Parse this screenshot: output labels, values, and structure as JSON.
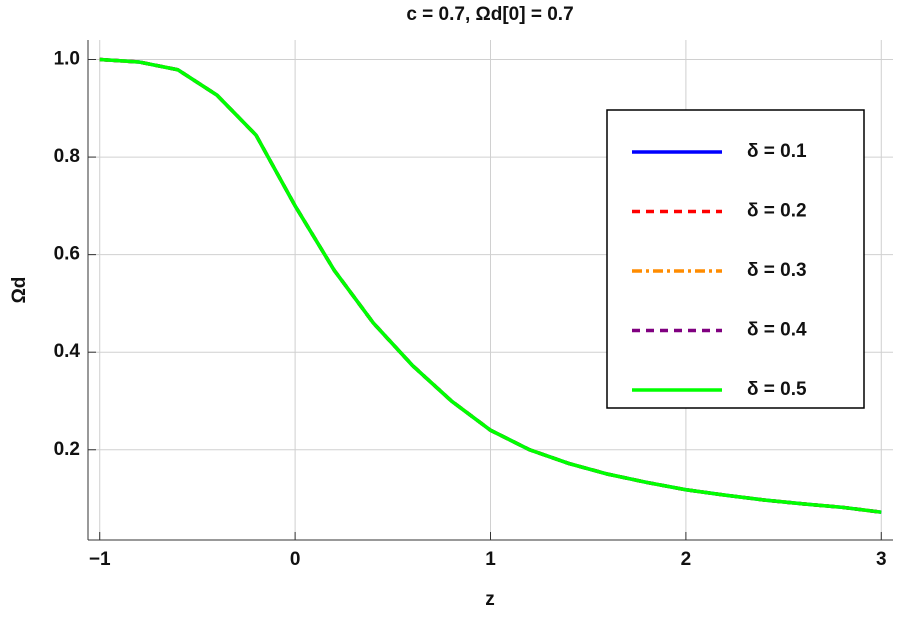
{
  "chart_data": {
    "type": "line",
    "title": "c = 0.7, Ωd[0] = 0.7",
    "x_label": "z",
    "y_label": "Ωd",
    "x": [
      -1,
      -0.8,
      -0.6,
      -0.4,
      -0.2,
      0,
      0.2,
      0.4,
      0.6,
      0.8,
      1,
      1.2,
      1.4,
      1.6,
      1.8,
      2,
      2.2,
      2.4,
      2.6,
      2.8,
      3
    ],
    "series": [
      {
        "name": "δ = 0.1",
        "color": "#0000ff",
        "style": "solid",
        "values": [
          1.0,
          0.995,
          0.979,
          0.927,
          0.845,
          0.7,
          0.568,
          0.46,
          0.373,
          0.3,
          0.24,
          0.2,
          0.172,
          0.15,
          0.133,
          0.118,
          0.107,
          0.097,
          0.089,
          0.082,
          0.072
        ]
      },
      {
        "name": "δ = 0.2",
        "color": "#ff0000",
        "style": "dashed",
        "values": [
          1.0,
          0.995,
          0.979,
          0.927,
          0.845,
          0.7,
          0.568,
          0.46,
          0.373,
          0.3,
          0.24,
          0.2,
          0.172,
          0.15,
          0.133,
          0.118,
          0.107,
          0.097,
          0.089,
          0.082,
          0.072
        ]
      },
      {
        "name": "δ = 0.3",
        "color": "#ff8c00",
        "style": "dashdot",
        "values": [
          1.0,
          0.995,
          0.979,
          0.927,
          0.845,
          0.7,
          0.568,
          0.46,
          0.373,
          0.3,
          0.24,
          0.2,
          0.172,
          0.15,
          0.133,
          0.118,
          0.107,
          0.097,
          0.089,
          0.082,
          0.072
        ]
      },
      {
        "name": "δ = 0.4",
        "color": "#800080",
        "style": "dashed",
        "values": [
          1.0,
          0.995,
          0.979,
          0.927,
          0.845,
          0.7,
          0.568,
          0.46,
          0.373,
          0.3,
          0.24,
          0.2,
          0.172,
          0.15,
          0.133,
          0.118,
          0.107,
          0.097,
          0.089,
          0.082,
          0.072
        ]
      },
      {
        "name": "δ = 0.5",
        "color": "#00ff00",
        "style": "solid",
        "values": [
          1.0,
          0.995,
          0.979,
          0.927,
          0.845,
          0.7,
          0.568,
          0.46,
          0.373,
          0.3,
          0.24,
          0.2,
          0.172,
          0.15,
          0.133,
          0.118,
          0.107,
          0.097,
          0.089,
          0.082,
          0.072
        ]
      }
    ],
    "xlim": [
      -1.06,
      3.06
    ],
    "ylim": [
      0.015,
      1.04
    ],
    "xticks": [
      {
        "value": -1,
        "label": "−1"
      },
      0,
      1,
      2,
      3
    ],
    "yticks": [
      0.2,
      0.4,
      0.6,
      0.8,
      {
        "value": 1.0,
        "label": "1.0"
      }
    ],
    "grid": true,
    "legend": "upper right"
  }
}
